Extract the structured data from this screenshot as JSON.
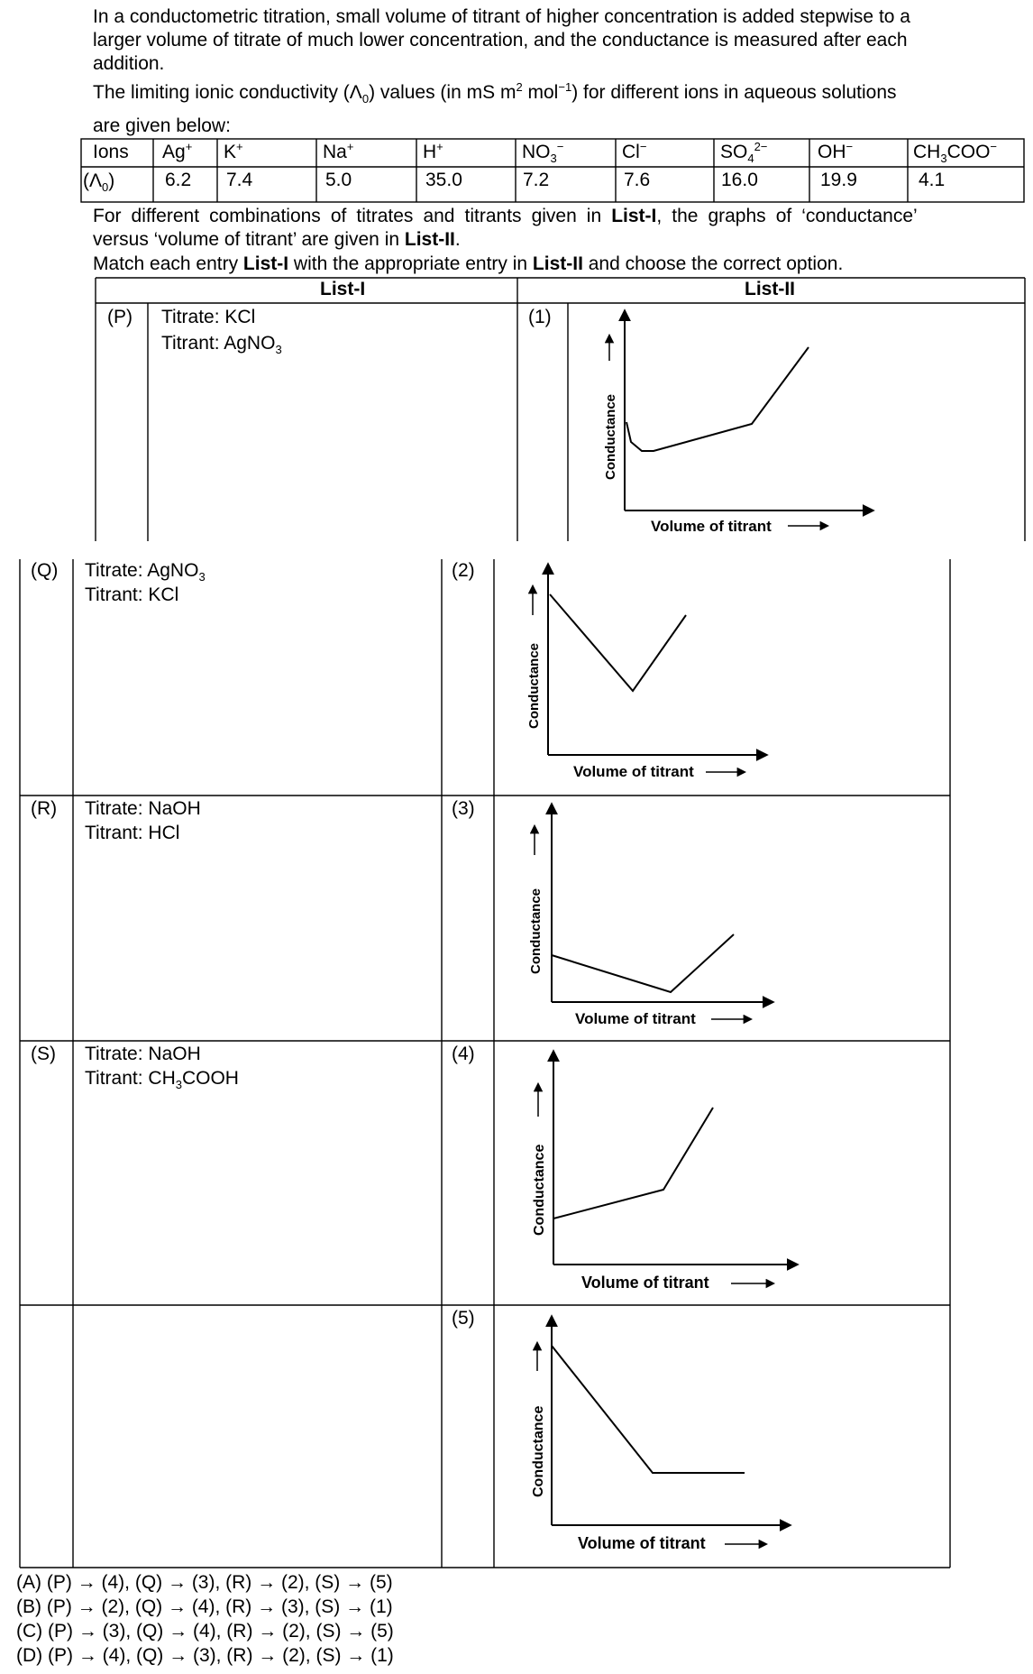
{
  "intro": {
    "line1": "In a conductometric titration, small volume of titrant of higher concentration is added stepwise to a",
    "line2": "larger volume of titrate of much lower concentration, and the conductance is measured after each",
    "line3": "addition.",
    "limiting_prefix": "The limiting ionic conductivity",
    "limiting_symbol": "(Λ",
    "limiting_sub": "0",
    "limiting_close": ")",
    "limiting_suffix_a": " values (in mS m",
    "limiting_sup1": "2",
    "limiting_suffix_b": " mol",
    "limiting_sup2": "−1",
    "limiting_suffix_c": ") for different ions in aqueous solutions",
    "line5": "are given below:"
  },
  "ion_table": {
    "row_label_ions": "Ions",
    "row_label_lambda": "(Λ",
    "row_label_lambda_sub": "0",
    "row_label_lambda_close": ")",
    "ions": [
      {
        "base": "Ag",
        "sup": "+",
        "sub": "",
        "value": "6.2"
      },
      {
        "base": "K",
        "sup": "+",
        "sub": "",
        "value": "7.4"
      },
      {
        "base": "Na",
        "sup": "+",
        "sub": "",
        "value": "5.0"
      },
      {
        "base": "H",
        "sup": "+",
        "sub": "",
        "value": "35.0"
      },
      {
        "base": "NO",
        "sup": "−",
        "sub": "3",
        "value": "7.2"
      },
      {
        "base": "Cl",
        "sup": "−",
        "sub": "",
        "value": "7.6"
      },
      {
        "base": "SO",
        "sup": "2−",
        "sub": "4",
        "value": "16.0"
      },
      {
        "base": "OH",
        "sup": "−",
        "sub": "",
        "value": "19.9"
      },
      {
        "base": "CH",
        "sup": "−",
        "sub": "3",
        "tail": "COO",
        "value": "4.1"
      }
    ]
  },
  "after_table": {
    "l1_a": "For different combinations of titrates and titrants given in ",
    "l1_b": "List-I",
    "l1_c": ", the graphs of ‘conductance’",
    "l2_a": "versus ‘volume of titrant’ are given in ",
    "l2_b": "List-II",
    "l2_c": ".",
    "l3_a": "Match each entry ",
    "l3_b": "List-I",
    "l3_c": " with the appropriate entry in ",
    "l3_d": "List-II",
    "l3_e": " and choose the correct option."
  },
  "match_table": {
    "header_left": "List-I",
    "header_right": "List-II",
    "list1": [
      {
        "label": "(P)",
        "titrate": "Titrate: KCl",
        "titrant_a": "Titrant: AgNO",
        "titrant_sub": "3",
        "titrant_b": ""
      },
      {
        "label": "(Q)",
        "titrate_a": "Titrate: AgNO",
        "titrate_sub": "3",
        "titrant": "Titrant: KCl"
      },
      {
        "label": "(R)",
        "titrate": "Titrate: NaOH",
        "titrant": "Titrant: HCl"
      },
      {
        "label": "(S)",
        "titrate": "Titrate: NaOH",
        "titrant_a": "Titrant: CH",
        "titrant_sub": "3",
        "titrant_b": "COOH"
      }
    ],
    "list2_labels": [
      "(1)",
      "(2)",
      "(3)",
      "(4)",
      "(5)"
    ],
    "graph_ylabel": "Conductance",
    "graph_xlabel": "Volume of titrant"
  },
  "options": [
    "(A)  (P) → (4), (Q) → (3), (R) → (2), (S) → (5)",
    "(B)  (P) → (2), (Q) → (4), (R) → (3), (S) → (1)",
    "(C)  (P) → (3), (Q) → (4), (R) → (2), (S) → (5)",
    "(D)  (P) → (4), (Q) → (3), (R) → (2), (S) → (1)"
  ]
}
